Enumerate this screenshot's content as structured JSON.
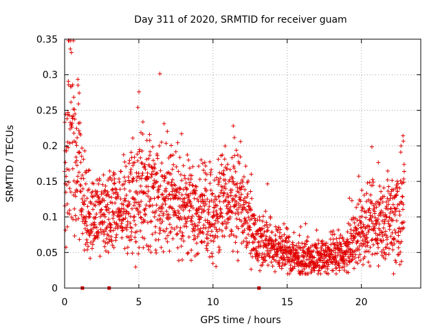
{
  "chart_data": {
    "type": "scatter",
    "title": "Day 311 of 2020, SRMTID for receiver guam",
    "xlabel": "GPS time / hours",
    "ylabel": "SRMTID / TECUs",
    "xlim": [
      0,
      24
    ],
    "ylim": [
      0,
      0.35
    ],
    "x_ticks": [
      0,
      5,
      10,
      15,
      20
    ],
    "x_tick_labels": [
      "0",
      "5",
      "10",
      "15",
      "20"
    ],
    "y_ticks": [
      0,
      0.05,
      0.1,
      0.15,
      0.2,
      0.25,
      0.3,
      0.35
    ],
    "y_tick_labels": [
      "0",
      "0.05",
      "0.1",
      "0.15",
      "0.2",
      "0.25",
      "0.3",
      "0.35"
    ],
    "grid": true,
    "marker": "+",
    "color": "#e00000",
    "zero_markers_x": [
      1.2,
      3.0,
      13.1
    ],
    "envelope": {
      "hours": [
        0,
        0.3,
        0.6,
        1,
        1.5,
        2,
        3,
        4,
        5,
        6,
        7,
        8,
        9,
        10,
        11,
        12,
        13,
        14,
        15,
        16,
        17,
        18,
        19,
        20,
        21,
        22,
        22.9
      ],
      "center": [
        0.12,
        0.22,
        0.2,
        0.15,
        0.11,
        0.1,
        0.1,
        0.11,
        0.14,
        0.13,
        0.12,
        0.12,
        0.11,
        0.1,
        0.13,
        0.12,
        0.07,
        0.06,
        0.05,
        0.04,
        0.04,
        0.045,
        0.05,
        0.08,
        0.09,
        0.1,
        0.12
      ],
      "spread": [
        0.04,
        0.1,
        0.08,
        0.05,
        0.04,
        0.035,
        0.035,
        0.04,
        0.05,
        0.045,
        0.045,
        0.04,
        0.04,
        0.04,
        0.045,
        0.045,
        0.025,
        0.02,
        0.018,
        0.015,
        0.015,
        0.015,
        0.018,
        0.03,
        0.035,
        0.04,
        0.07
      ]
    },
    "n_points": 2200
  }
}
